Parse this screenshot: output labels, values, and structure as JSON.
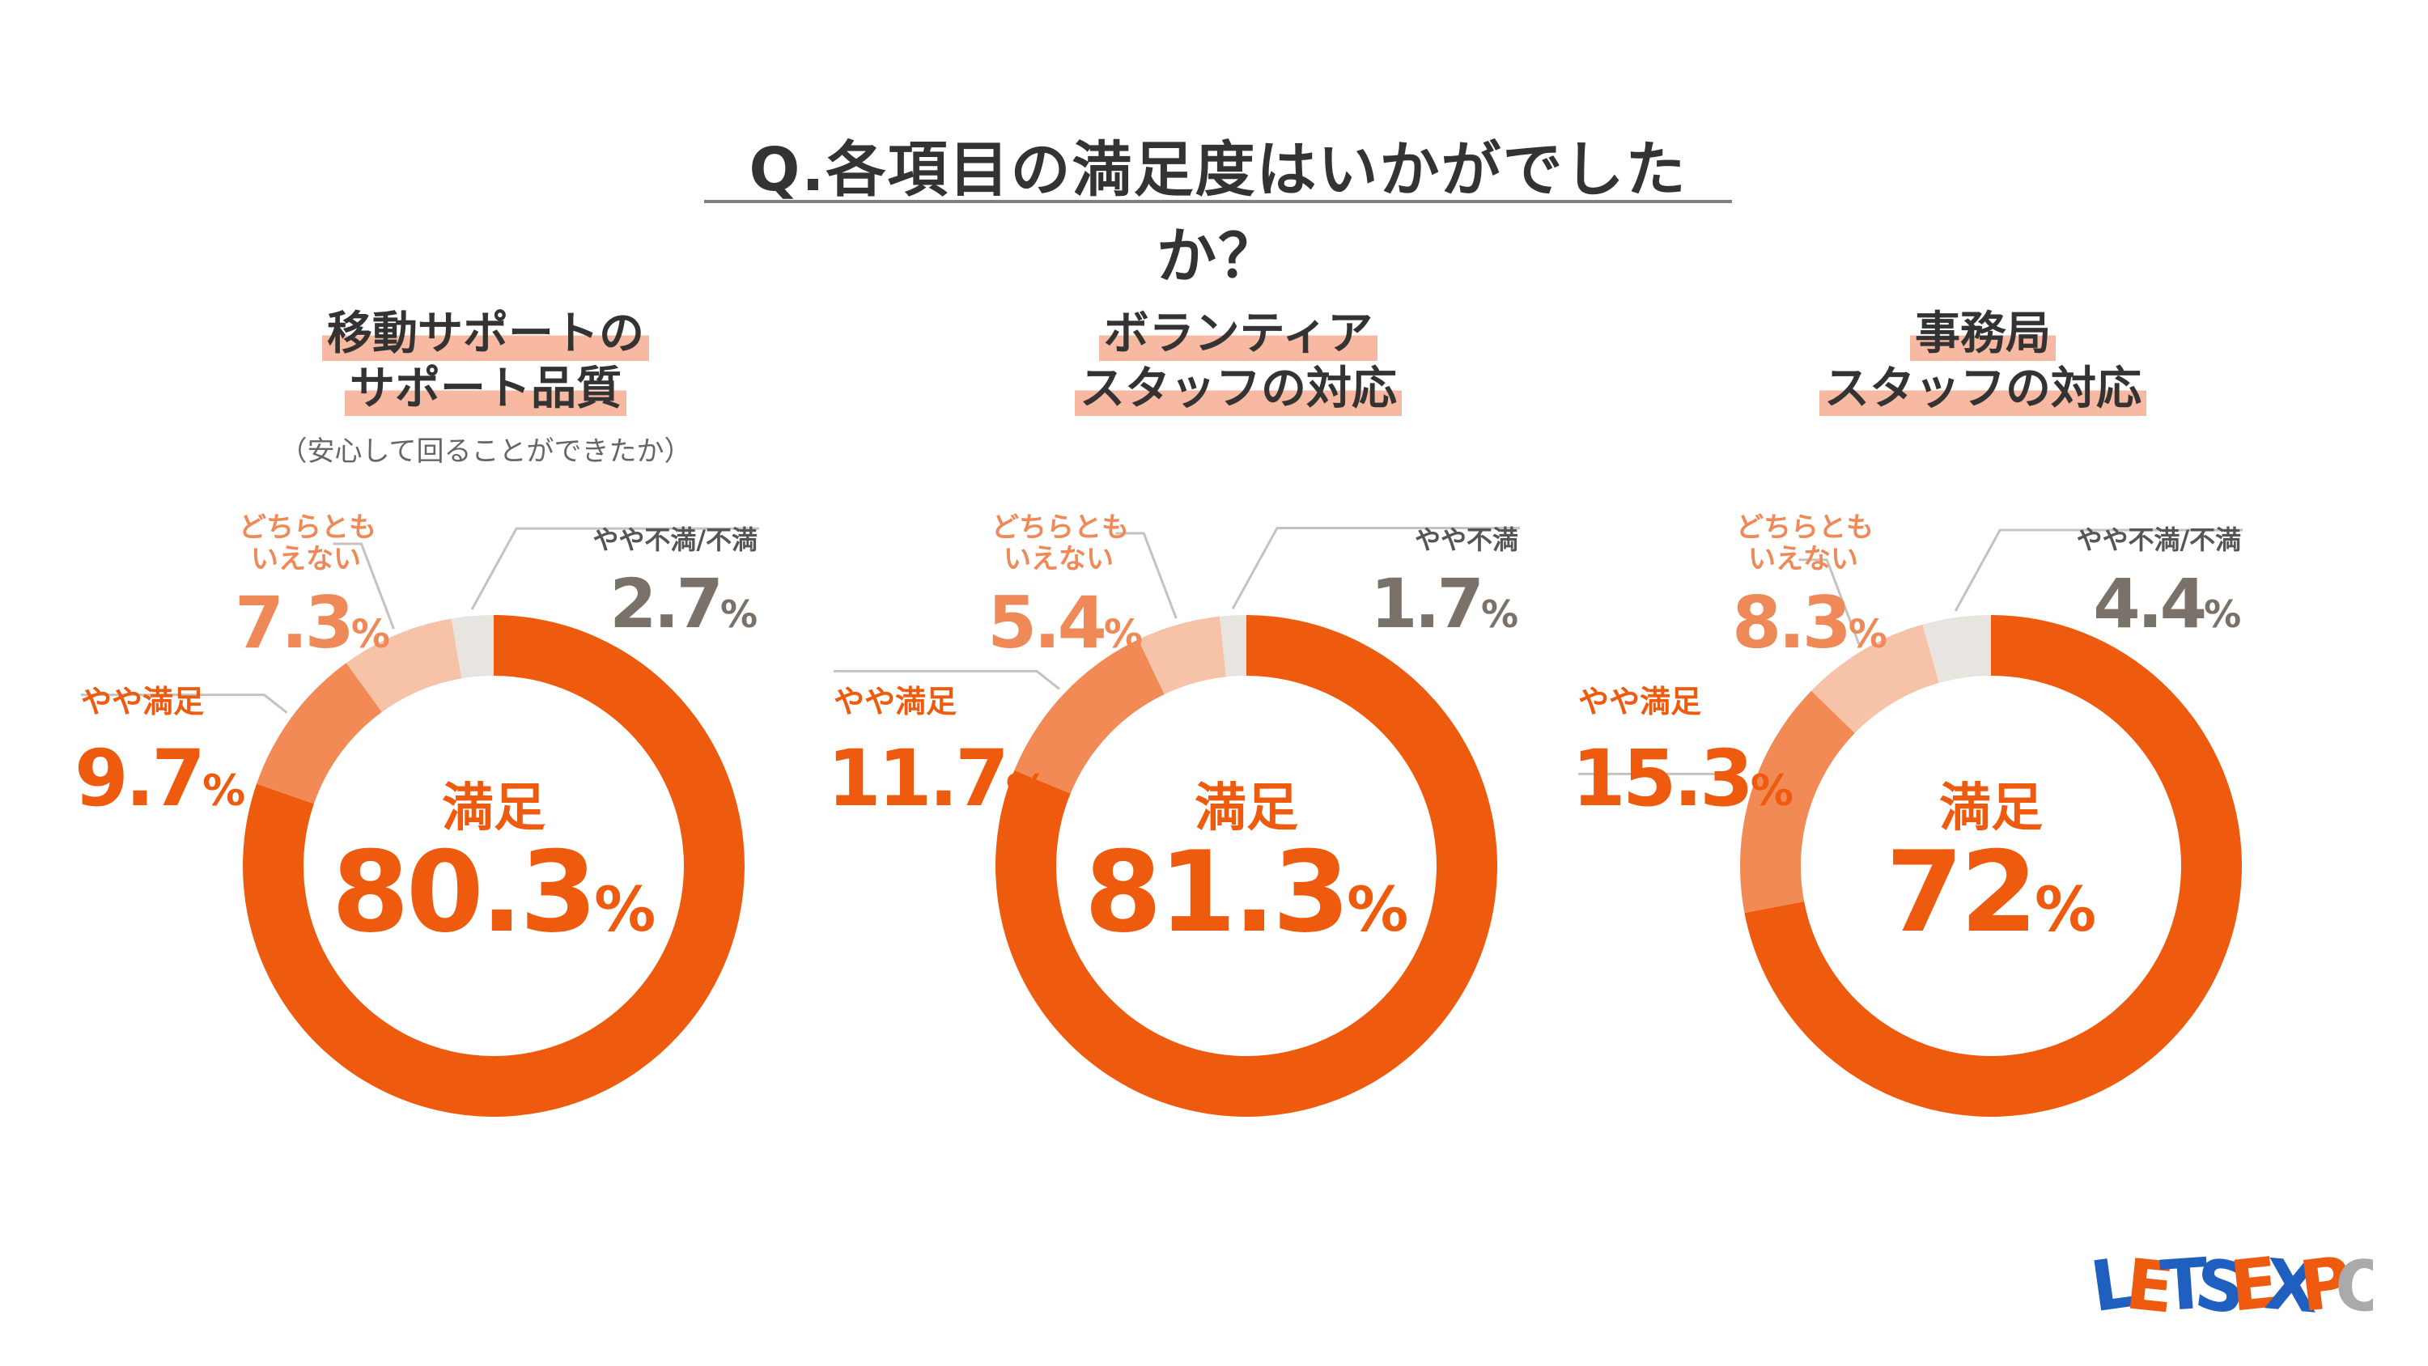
{
  "title": "Q.各項目の満足度はいかがでしたか？",
  "colors": {
    "satisfied": "#ee5a0e",
    "somewhat_satisfied": "#f28a55",
    "neutral": "#f6c2a8",
    "dissatisfied": "#e8e4e0",
    "label_orange": "#ee5a0e",
    "label_light_orange": "#ef8a58",
    "label_gray": "#7a7268",
    "leader": "#c8c2bc"
  },
  "labels": {
    "satisfied": "満足",
    "somewhat_satisfied": "やや満足",
    "neutral_line1": "どちらとも",
    "neutral_line2": "いえない",
    "percent": "%"
  },
  "chart_data": [
    {
      "type": "pie",
      "title_lines": [
        "移動サポートの",
        "サポート品質"
      ],
      "subtitle": "（安心して回ることができたか）",
      "dissatisfied_label": "やや不満/不満",
      "series": [
        {
          "name": "満足",
          "value": 80.3,
          "display": "80.3"
        },
        {
          "name": "やや満足",
          "value": 9.7,
          "display": "9.7"
        },
        {
          "name": "どちらともいえない",
          "value": 7.3,
          "display": "7.3"
        },
        {
          "name": "やや不満/不満",
          "value": 2.7,
          "display": "2.7"
        }
      ]
    },
    {
      "type": "pie",
      "title_lines": [
        "ボランティア",
        "スタッフの対応"
      ],
      "subtitle": "",
      "dissatisfied_label": "やや不満",
      "series": [
        {
          "name": "満足",
          "value": 81.3,
          "display": "81.3"
        },
        {
          "name": "やや満足",
          "value": 11.7,
          "display": "11.7"
        },
        {
          "name": "どちらともいえない",
          "value": 5.4,
          "display": "5.4"
        },
        {
          "name": "やや不満",
          "value": 1.7,
          "display": "1.7"
        }
      ]
    },
    {
      "type": "pie",
      "title_lines": [
        "事務局",
        "スタッフの対応"
      ],
      "subtitle": "",
      "dissatisfied_label": "やや不満/不満",
      "series": [
        {
          "name": "満足",
          "value": 72,
          "display": "72"
        },
        {
          "name": "やや満足",
          "value": 15.3,
          "display": "15.3"
        },
        {
          "name": "どちらともいえない",
          "value": 8.3,
          "display": "8.3"
        },
        {
          "name": "やや不満/不満",
          "value": 4.4,
          "display": "4.4"
        }
      ]
    }
  ],
  "logo": {
    "letters": [
      "L",
      "E",
      "T",
      "S",
      "E",
      "X",
      "P",
      "O"
    ],
    "colors": [
      "#1f5fbf",
      "#ee5a0e",
      "#1f5fbf",
      "#1f5fbf",
      "#ee5a0e",
      "#1f5fbf",
      "#ee5a0e",
      "#aaaaaa"
    ]
  }
}
